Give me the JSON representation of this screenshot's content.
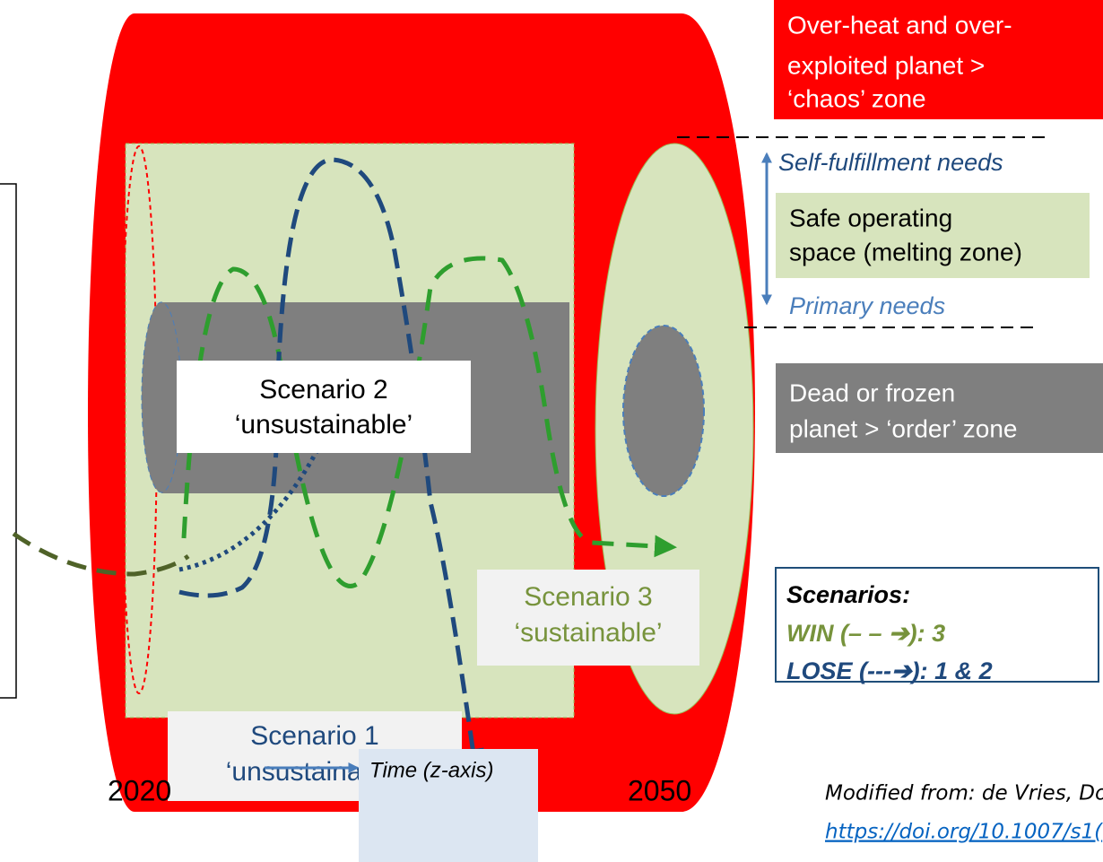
{
  "zones": {
    "chaos": [
      "Over-heat and over-",
      "exploited planet >",
      "‘chaos’ zone"
    ],
    "self_fulfillment": "Self-fulfillment needs",
    "safe": [
      "Safe operating",
      "space (melting zone)"
    ],
    "primary": "Primary needs",
    "order": [
      "Dead or frozen",
      "planet > ‘order’ zone"
    ]
  },
  "scenarios": [
    {
      "label": [
        "Scenario 1",
        "‘unsustainable’"
      ]
    },
    {
      "label": [
        "Scenario 2",
        "‘unsustainable’"
      ]
    },
    {
      "label": [
        "Scenario 3",
        "‘sustainable’"
      ]
    }
  ],
  "legend": {
    "title": "Scenarios:",
    "win": "WIN (– – ➔): 3",
    "lose": "LOSE (---➔): 1 & 2"
  },
  "axis": {
    "start": "2020",
    "end": "2050",
    "label": "Time (z-axis)"
  },
  "source": [
    "Modified from: de Vries, Do",
    "https://doi.org/10.1007/s1("
  ]
}
